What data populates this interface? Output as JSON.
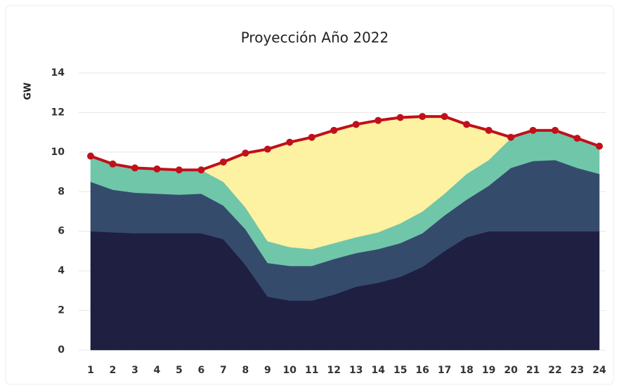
{
  "chart_data": {
    "type": "stacked_area",
    "title": "Proyección Año 2022",
    "y_label": "GW",
    "categories": [
      "1",
      "2",
      "3",
      "4",
      "5",
      "6",
      "7",
      "8",
      "9",
      "10",
      "11",
      "12",
      "13",
      "14",
      "15",
      "16",
      "17",
      "18",
      "19",
      "20",
      "21",
      "22",
      "23",
      "24"
    ],
    "ylim": [
      0,
      14
    ],
    "yticks": [
      0,
      2,
      4,
      6,
      8,
      10,
      12,
      14
    ],
    "grid": true,
    "series": [
      {
        "color": "#1f1f42",
        "values": [
          6.0,
          5.95,
          5.9,
          5.9,
          5.9,
          5.9,
          5.6,
          4.3,
          2.7,
          2.5,
          2.5,
          2.8,
          3.2,
          3.4,
          3.7,
          4.2,
          5.0,
          5.7,
          6.0,
          6.0,
          6.0,
          6.0,
          6.0,
          6.0
        ]
      },
      {
        "color": "#354b6c",
        "values": [
          2.5,
          2.15,
          2.05,
          2.0,
          1.95,
          2.0,
          1.7,
          1.8,
          1.7,
          1.75,
          1.75,
          1.8,
          1.7,
          1.7,
          1.7,
          1.7,
          1.8,
          1.9,
          2.3,
          3.2,
          3.55,
          3.6,
          3.2,
          2.9
        ]
      },
      {
        "color": "#70c6a9",
        "values": [
          1.3,
          1.3,
          1.25,
          1.25,
          1.25,
          1.2,
          1.2,
          1.1,
          1.1,
          0.95,
          0.85,
          0.8,
          0.8,
          0.85,
          1.0,
          1.1,
          1.1,
          1.3,
          1.3,
          1.5,
          1.55,
          1.5,
          1.5,
          1.4
        ]
      },
      {
        "color": "#fdf1a2",
        "values": [
          0,
          0,
          0,
          0,
          0,
          0,
          1.0,
          2.75,
          4.65,
          5.3,
          5.65,
          5.7,
          5.7,
          5.65,
          5.35,
          4.8,
          3.9,
          2.5,
          1.5,
          0.05,
          0,
          0,
          0,
          0
        ]
      },
      {
        "color": "#c0101a",
        "markers": true,
        "values": [
          0,
          0,
          0,
          0,
          0,
          0,
          0,
          0,
          0,
          0,
          0,
          0,
          0,
          0,
          0,
          0,
          0,
          0,
          0,
          0,
          0,
          0,
          0,
          0
        ]
      }
    ]
  }
}
